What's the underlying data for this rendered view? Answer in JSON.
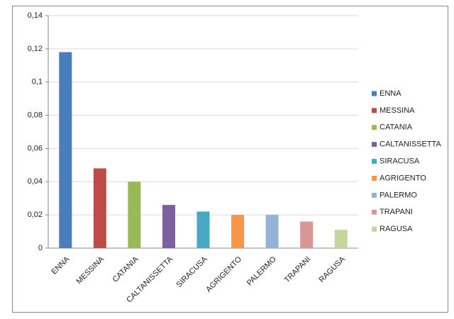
{
  "chart_data": {
    "type": "bar",
    "categories": [
      "ENNA",
      "MESSINA",
      "CATANIA",
      "CALTANISSETTA",
      "SIRACUSA",
      "AGRIGENTO",
      "PALERMO",
      "TRAPANI",
      "RAGUSA"
    ],
    "values": [
      0.118,
      0.048,
      0.04,
      0.026,
      0.022,
      0.02,
      0.02,
      0.016,
      0.011
    ],
    "colors": [
      "#4a7ebb",
      "#be4b48",
      "#98b954",
      "#7d60a0",
      "#46aac5",
      "#f79646",
      "#95b3d7",
      "#d99694",
      "#c3d69b"
    ],
    "ylim": [
      0,
      0.14
    ],
    "yticks": [
      0,
      {
        "value": 0.02,
        "label": "0,02"
      },
      {
        "value": 0.04,
        "label": "0,04"
      },
      {
        "value": 0.06,
        "label": "0,06"
      },
      {
        "value": 0.08,
        "label": "0,08"
      },
      {
        "value": 0.1,
        "label": "0,1"
      },
      {
        "value": 0.12,
        "label": "0,12"
      },
      {
        "value": 0.14,
        "label": "0,14"
      }
    ],
    "grid": true,
    "legend": "right"
  }
}
